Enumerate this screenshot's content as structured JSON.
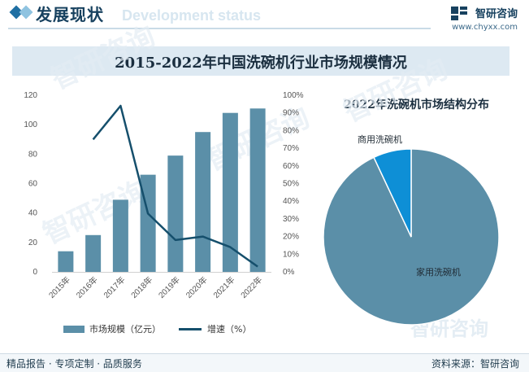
{
  "header": {
    "title": "发展现状",
    "subtitle": "Development status"
  },
  "brand": {
    "name": "智研咨询",
    "url": "www.chyxx.com"
  },
  "main_title": "2015-2022年中国洗碗机行业市场规模情况",
  "footer": {
    "left": "精品报告 · 专项定制 · 品质服务",
    "right": "资料来源：智研咨询"
  },
  "watermark": "智研咨询",
  "colors": {
    "bar": "#5b8fa8",
    "line": "#154f6c",
    "pie_home": "#5b8fa8",
    "pie_commercial": "#0e8fd6",
    "header_accent": "#1f6fa3"
  },
  "chart_data": [
    {
      "type": "bar",
      "categories": [
        "2015年",
        "2016年",
        "2017年",
        "2018年",
        "2019年",
        "2020年",
        "2021年",
        "2022年"
      ],
      "series": [
        {
          "name": "市场规模（亿元）",
          "type": "bar",
          "axis": "left",
          "values": [
            14,
            25,
            49,
            66,
            79,
            95,
            108,
            111
          ]
        },
        {
          "name": "增速（%）",
          "type": "line",
          "axis": "right",
          "values": [
            null,
            75,
            94,
            33,
            18,
            20,
            14,
            3
          ]
        }
      ],
      "y_left": {
        "min": 0,
        "max": 120,
        "ticks": [
          "0",
          "20",
          "40",
          "60",
          "80",
          "100",
          "120"
        ]
      },
      "y_right": {
        "min": 0,
        "max": 100,
        "ticks": [
          "0%",
          "10%",
          "20%",
          "30%",
          "40%",
          "50%",
          "60%",
          "70%",
          "80%",
          "90%",
          "100%"
        ]
      },
      "legend_position": "bottom"
    },
    {
      "type": "pie",
      "title": "2022年洗碗机市场结构分布",
      "labels": [
        "家用洗碗机",
        "商用洗碗机"
      ],
      "values": [
        93,
        7
      ]
    }
  ]
}
